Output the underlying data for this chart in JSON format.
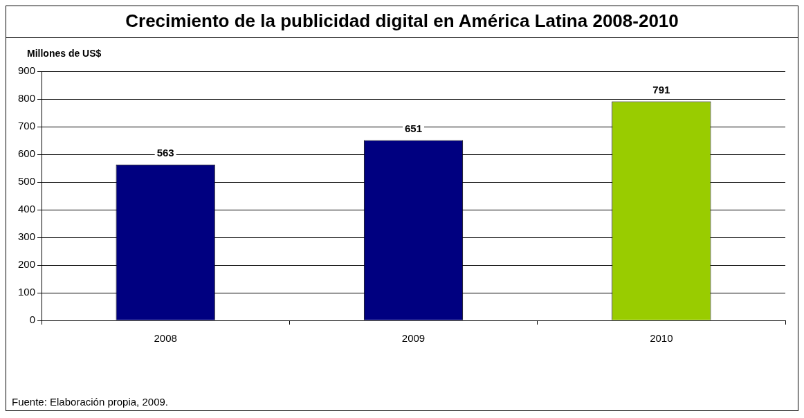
{
  "chart_data": {
    "type": "bar",
    "title": "Crecimiento de la publicidad digital en América Latina 2008-2010",
    "ylabel": "Millones de US$",
    "categories": [
      "2008",
      "2009",
      "2010"
    ],
    "values": [
      563,
      651,
      791
    ],
    "colors": [
      "#000080",
      "#000080",
      "#99cc00"
    ],
    "ylim": [
      0,
      900
    ],
    "yticks": [
      0,
      100,
      200,
      300,
      400,
      500,
      600,
      700,
      800,
      900
    ],
    "grid": "y",
    "data_labels": true,
    "annotations": [
      "Fuente: Elaboración propia, 2009."
    ]
  }
}
